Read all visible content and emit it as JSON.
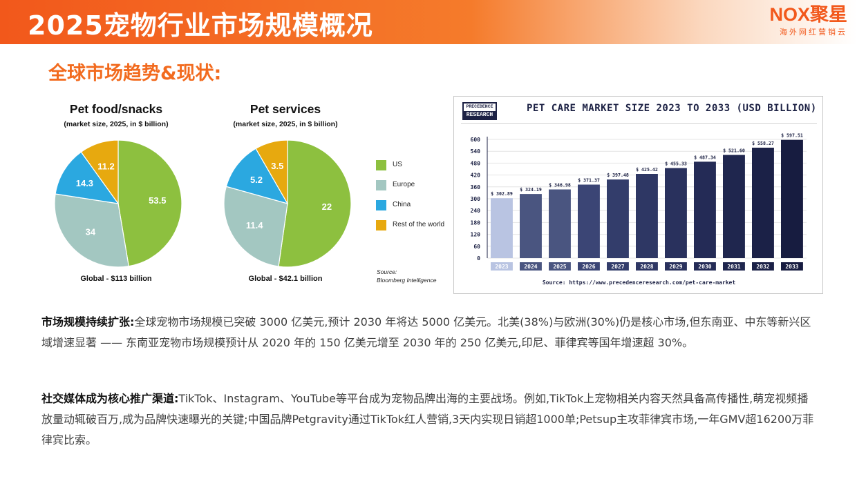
{
  "header": {
    "title": "2025宠物行业市场规模概况",
    "brand_name": "NOX聚星",
    "brand_tagline": "海外网红营销云"
  },
  "section": {
    "heading": "全球市场趋势&现状:"
  },
  "legend": {
    "items": [
      {
        "label": "US",
        "color": "#8dc03f"
      },
      {
        "label": "Europe",
        "color": "#a3c7c1"
      },
      {
        "label": "China",
        "color": "#2ba8e0"
      },
      {
        "label": "Rest of the world",
        "color": "#e7a90f"
      }
    ],
    "source_line1": "Source:",
    "source_line2": "Bloomberg Intelligence"
  },
  "chart_data": [
    {
      "type": "pie",
      "title": "Pet food/snacks",
      "subtitle": "(market size, 2025, in $ billion)",
      "footer": "Global - $113 billion",
      "slices": [
        {
          "label": "US",
          "value": 53.5,
          "value_label": "53.5",
          "color": "#8dc03f"
        },
        {
          "label": "Europe",
          "value": 34,
          "value_label": "34",
          "color": "#a3c7c1"
        },
        {
          "label": "China",
          "value": 14.3,
          "value_label": "14.3",
          "color": "#2ba8e0"
        },
        {
          "label": "Rest of the world",
          "value": 11.2,
          "value_label": "11.2",
          "color": "#e7a90f"
        }
      ]
    },
    {
      "type": "pie",
      "title": "Pet services",
      "subtitle": "(market size, 2025, in $ billion)",
      "footer": "Global - $42.1 billion",
      "slices": [
        {
          "label": "US",
          "value": 22,
          "value_label": "22",
          "color": "#8dc03f"
        },
        {
          "label": "Europe",
          "value": 11.4,
          "value_label": "11.4",
          "color": "#a3c7c1"
        },
        {
          "label": "China",
          "value": 5.2,
          "value_label": "5.2",
          "color": "#2ba8e0"
        },
        {
          "label": "Rest of the world",
          "value": 3.5,
          "value_label": "3.5",
          "color": "#e7a90f"
        }
      ]
    },
    {
      "type": "bar",
      "title": "PET CARE MARKET SIZE 2023 TO 2033 (USD BILLION)",
      "logo_line1": "PRECEDENCE",
      "logo_line2": "RESEARCH",
      "source": "Source: https://www.precedenceresearch.com/pet-care-market",
      "categories": [
        "2023",
        "2024",
        "2025",
        "2026",
        "2027",
        "2028",
        "2029",
        "2030",
        "2031",
        "2032",
        "2033"
      ],
      "values": [
        302.89,
        324.19,
        346.98,
        371.37,
        397.48,
        425.42,
        455.33,
        487.34,
        521.6,
        558.27,
        597.51
      ],
      "value_labels": [
        "$ 302.89",
        "$ 324.19",
        "$ 346.98",
        "$ 371.37",
        "$ 397.48",
        "$ 425.42",
        "$ 455.33",
        "$ 487.34",
        "$ 521.60",
        "$ 558.27",
        "$ 597.51"
      ],
      "bar_colors": [
        "#b9c4e2",
        "#4a5580",
        "#4a5580",
        "#3b4575",
        "#333d6b",
        "#2e3764",
        "#29315d",
        "#242b56",
        "#1f264e",
        "#1b2147",
        "#171c40"
      ],
      "yticks": [
        0,
        60,
        120,
        180,
        240,
        300,
        360,
        420,
        480,
        540,
        600
      ],
      "ylim": [
        0,
        600
      ]
    }
  ],
  "paragraphs": [
    {
      "lead": "市场规模持续扩张:",
      "body": "全球宠物市场规模已突破 3000 亿美元,预计 2030 年将达 5000 亿美元。北美(38%)与欧洲(30%)仍是核心市场,但东南亚、中东等新兴区域增速显著 —— 东南亚宠物市场规模预计从 2020 年的 150 亿美元增至 2030 年的 250 亿美元,印尼、菲律宾等国年增速超 30%。"
    },
    {
      "lead": "社交媒体成为核心推广渠道:",
      "body": "TikTok、Instagram、YouTube等平台成为宠物品牌出海的主要战场。例如,TikTok上宠物相关内容天然具备高传播性,萌宠视频播放量动辄破百万,成为品牌快速曝光的关键;中国品牌Petgravity通过TikTok红人营销,3天内实现日销超1000单;Petsup主攻菲律宾市场,一年GMV超16200万菲律宾比索。"
    }
  ]
}
